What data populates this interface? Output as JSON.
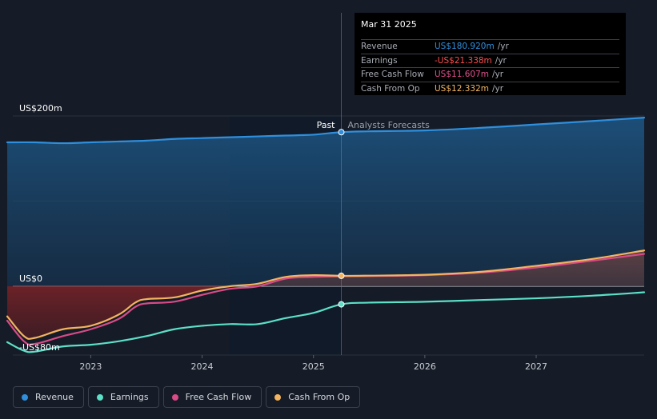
{
  "tooltip": {
    "date": "Mar 31 2025",
    "rows": [
      {
        "label": "Revenue",
        "value": "US$180.920m",
        "unit": "/yr",
        "color": "#2f8fdc"
      },
      {
        "label": "Earnings",
        "value": "-US$21.338m",
        "unit": "/yr",
        "color": "#ff4d4d"
      },
      {
        "label": "Free Cash Flow",
        "value": "US$11.607m",
        "unit": "/yr",
        "color": "#e0508c"
      },
      {
        "label": "Cash From Op",
        "value": "US$12.332m",
        "unit": "/yr",
        "color": "#f2b460"
      }
    ]
  },
  "labels": {
    "past": "Past",
    "forecast": "Analysts Forecasts"
  },
  "legend": [
    {
      "label": "Revenue",
      "color": "#2f8fdc"
    },
    {
      "label": "Earnings",
      "color": "#5ce0c8"
    },
    {
      "label": "Free Cash Flow",
      "color": "#d94a86"
    },
    {
      "label": "Cash From Op",
      "color": "#f2b460"
    }
  ],
  "chart_data": {
    "type": "line",
    "y_tick_labels": [
      "US$200m",
      "US$0",
      "-US$80m"
    ],
    "y_ticks": [
      200,
      0,
      -80
    ],
    "ylim": [
      -80,
      200
    ],
    "xlim": [
      2022.3,
      2027.97
    ],
    "x_ticks": [
      2023,
      2024,
      2025,
      2026,
      2027
    ],
    "x_tick_labels": [
      "2023",
      "2024",
      "2025",
      "2026",
      "2027"
    ],
    "past_end": 2025.25,
    "shaded_start": 2024.25,
    "series": [
      {
        "name": "Revenue",
        "color": "#2f8fdc",
        "area": true,
        "x": [
          2022.25,
          2022.5,
          2022.75,
          2023.0,
          2023.25,
          2023.5,
          2023.75,
          2024.0,
          2024.25,
          2024.5,
          2024.75,
          2025.0,
          2025.25,
          2025.5,
          2026.0,
          2026.5,
          2027.0,
          2027.5,
          2027.97
        ],
        "y": [
          169,
          169,
          168,
          169,
          170,
          171,
          173,
          174,
          175,
          176,
          177,
          178,
          181,
          182,
          183,
          186,
          190,
          194,
          198
        ]
      },
      {
        "name": "Earnings",
        "color": "#5ce0c8",
        "x": [
          2022.25,
          2022.4,
          2022.5,
          2022.75,
          2023.0,
          2023.25,
          2023.5,
          2023.75,
          2024.0,
          2024.25,
          2024.5,
          2024.75,
          2025.0,
          2025.25,
          2025.5,
          2026.0,
          2026.5,
          2027.0,
          2027.5,
          2027.97
        ],
        "y": [
          -65,
          -75,
          -76,
          -70,
          -68,
          -64,
          -58,
          -50,
          -46,
          -44,
          -44,
          -37,
          -31,
          -21,
          -19,
          -18,
          -16,
          -14,
          -11,
          -7
        ]
      },
      {
        "name": "Free Cash Flow",
        "color": "#d94a86",
        "x": [
          2022.25,
          2022.4,
          2022.5,
          2022.75,
          2023.0,
          2023.25,
          2023.4,
          2023.5,
          2023.75,
          2024.0,
          2024.25,
          2024.5,
          2024.75,
          2025.0,
          2025.25,
          2025.5,
          2026.0,
          2026.5,
          2027.0,
          2027.5,
          2027.97
        ],
        "y": [
          -40,
          -64,
          -67,
          -58,
          -50,
          -38,
          -24,
          -20,
          -18,
          -10,
          -3,
          0,
          9,
          11,
          11.6,
          12,
          13,
          16,
          22,
          30,
          38
        ]
      },
      {
        "name": "Cash From Op",
        "color": "#f2b460",
        "x": [
          2022.25,
          2022.4,
          2022.5,
          2022.75,
          2023.0,
          2023.25,
          2023.4,
          2023.5,
          2023.75,
          2024.0,
          2024.25,
          2024.5,
          2024.75,
          2025.0,
          2025.25,
          2025.5,
          2026.0,
          2026.5,
          2027.0,
          2027.5,
          2027.97
        ],
        "y": [
          -35,
          -58,
          -60,
          -50,
          -46,
          -33,
          -19,
          -15,
          -13,
          -5,
          0,
          3,
          11,
          13,
          12.3,
          12.5,
          13.5,
          17,
          24,
          32,
          42
        ]
      }
    ]
  }
}
